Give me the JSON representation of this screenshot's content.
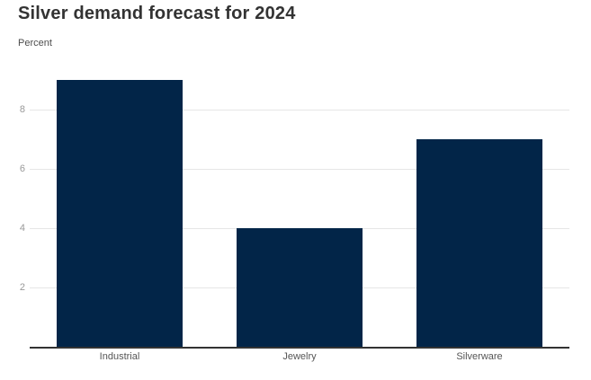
{
  "header": {
    "title": "Silver demand forecast for 2024",
    "subtitle": "Percent"
  },
  "colors": {
    "bar": "#022548",
    "title_text": "#333333",
    "subtitle_text": "#4d4d4d",
    "tick_label": "#999999",
    "gridline": "#e6e6e6",
    "axis_line": "#333333",
    "category_label": "#555555",
    "background": "#ffffff"
  },
  "chart_data": {
    "type": "bar",
    "title": "Silver demand forecast for 2024",
    "subtitle": "Percent",
    "categories": [
      "Industrial",
      "Jewelry",
      "Silverware"
    ],
    "values": [
      9,
      4,
      7
    ],
    "xlabel": "",
    "ylabel": "Percent",
    "yticks": [
      2,
      4,
      6,
      8
    ],
    "ylim": [
      0,
      9.6
    ],
    "grid": "horizontal",
    "legend": "none",
    "bar_color": "#022548"
  }
}
